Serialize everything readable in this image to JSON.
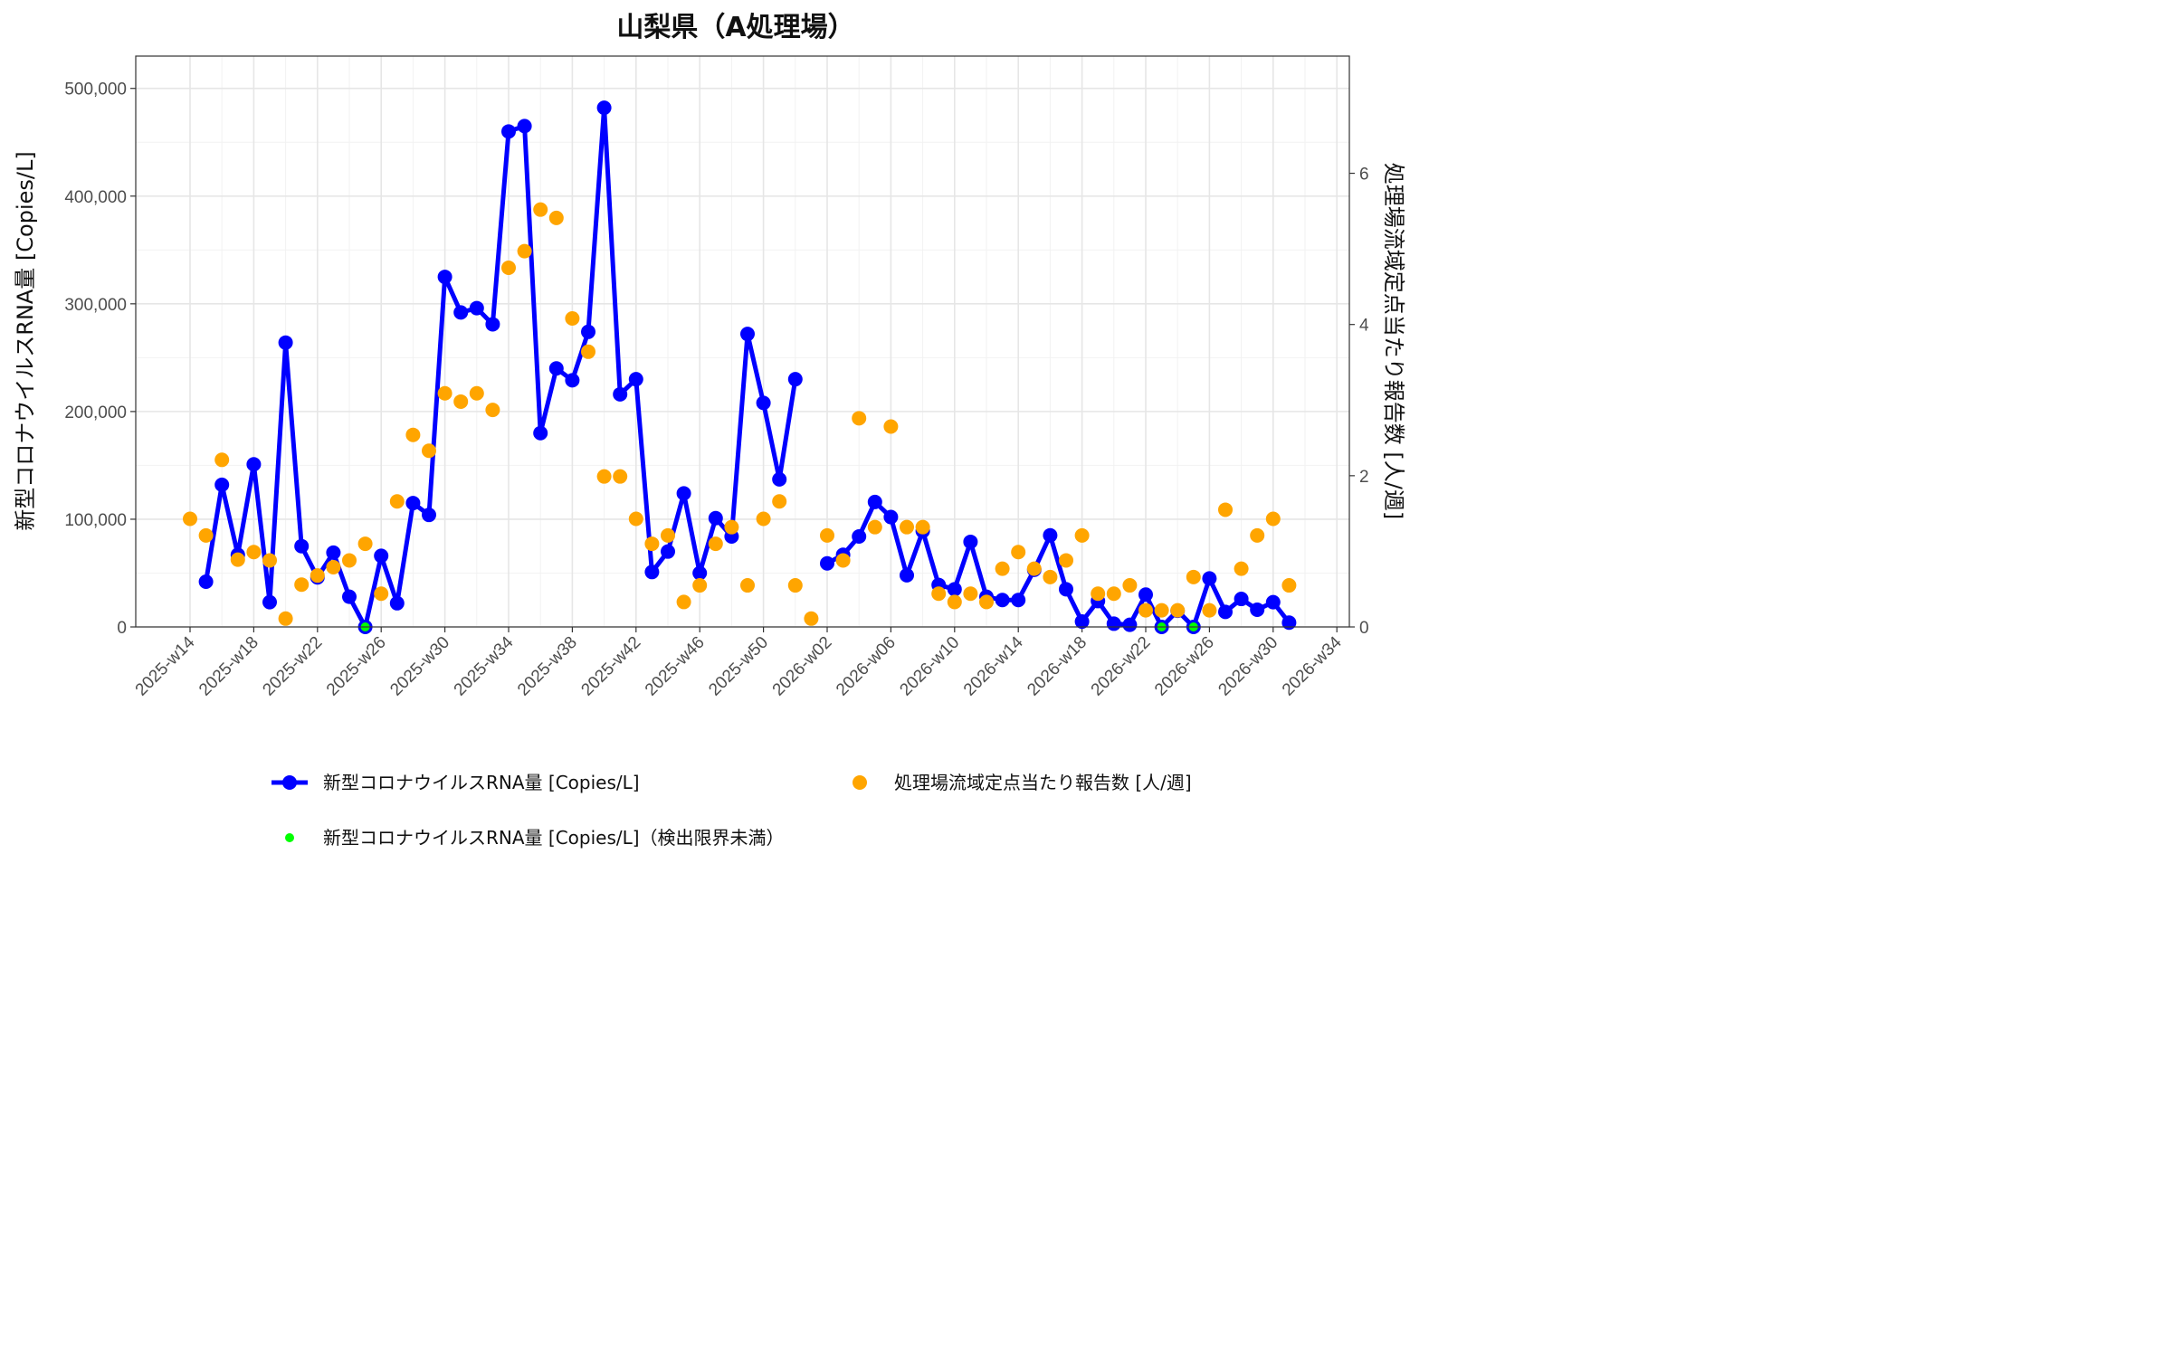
{
  "chart_data": {
    "type": "line",
    "title": "山梨県（A処理場）",
    "ylabel": "新型コロナウイルスRNA量 [Copies/L]",
    "y2label": "処理場流域定点当たり報告数 [人/週]",
    "ylim": [
      0,
      530000
    ],
    "y2lim": [
      0,
      7.55
    ],
    "yticks": [
      0,
      100000,
      200000,
      300000,
      400000,
      500000
    ],
    "ytick_labels": [
      "0",
      "100,000",
      "200,000",
      "300,000",
      "400,000",
      "500,000"
    ],
    "y2ticks": [
      0,
      2,
      4,
      6
    ],
    "y2tick_labels": [
      "0",
      "2",
      "4",
      "6"
    ],
    "xticks": [
      "2025-w14",
      "2025-w18",
      "2025-w22",
      "2025-w26",
      "2025-w30",
      "2025-w34",
      "2025-w38",
      "2025-w42",
      "2025-w46",
      "2025-w50",
      "2026-w02",
      "2026-w06",
      "2026-w10",
      "2026-w14",
      "2026-w18",
      "2026-w22",
      "2026-w26",
      "2026-w30",
      "2026-w34"
    ],
    "grid": true,
    "legend_position": "bottom",
    "series": [
      {
        "name": "新型コロナウイルスRNA量 [Copies/L]",
        "kind": "line",
        "axis": "left",
        "color": "#0000ff",
        "x": [
          "2025-w15",
          "2025-w16",
          "2025-w17",
          "2025-w18",
          "2025-w19",
          "2025-w20",
          "2025-w21",
          "2025-w22",
          "2025-w23",
          "2025-w24",
          "2025-w25",
          "2025-w26",
          "2025-w27",
          "2025-w28",
          "2025-w29",
          "2025-w30",
          "2025-w31",
          "2025-w32",
          "2025-w33",
          "2025-w34",
          "2025-w35",
          "2025-w36",
          "2025-w37",
          "2025-w38",
          "2025-w39",
          "2025-w40",
          "2025-w41",
          "2025-w42",
          "2025-w43",
          "2025-w44",
          "2025-w45",
          "2025-w46",
          "2025-w47",
          "2025-w48",
          "2025-w49",
          "2025-w50",
          "2025-w51",
          "2025-w52",
          "2026-w01",
          "2026-w02",
          "2026-w03",
          "2026-w04",
          "2026-w05",
          "2026-w06",
          "2026-w07",
          "2026-w08",
          "2026-w09",
          "2026-w10",
          "2026-w11",
          "2026-w12",
          "2026-w13",
          "2026-w14",
          "2026-w15",
          "2026-w16",
          "2026-w17",
          "2026-w18",
          "2026-w19",
          "2026-w20",
          "2026-w21",
          "2026-w22",
          "2026-w23",
          "2026-w24",
          "2026-w25",
          "2026-w26",
          "2026-w27",
          "2026-w28",
          "2026-w29",
          "2026-w30",
          "2026-w31"
        ],
        "values": [
          42000,
          132000,
          67000,
          151000,
          23000,
          264000,
          75000,
          46000,
          69000,
          28000,
          0,
          66000,
          22000,
          115000,
          104000,
          325000,
          292000,
          296000,
          281000,
          460000,
          465000,
          180000,
          240000,
          229000,
          274000,
          482000,
          216000,
          230000,
          51000,
          70000,
          124000,
          50000,
          101000,
          84000,
          272000,
          208000,
          137000,
          230000,
          null,
          59000,
          67000,
          84000,
          116000,
          102000,
          48000,
          89000,
          39000,
          35000,
          79000,
          28000,
          25000,
          25000,
          53000,
          85000,
          35000,
          5000,
          24000,
          3000,
          2000,
          30000,
          0,
          15000,
          0,
          45000,
          14000,
          26000,
          16000,
          23000,
          4000
        ]
      },
      {
        "name": "処理場流域定点当たり報告数 [人/週]",
        "kind": "points",
        "axis": "right",
        "color": "#ffa500",
        "x": [
          "2025-w14",
          "2025-w15",
          "2025-w16",
          "2025-w17",
          "2025-w18",
          "2025-w19",
          "2025-w20",
          "2025-w21",
          "2025-w22",
          "2025-w23",
          "2025-w24",
          "2025-w25",
          "2025-w26",
          "2025-w27",
          "2025-w28",
          "2025-w29",
          "2025-w30",
          "2025-w31",
          "2025-w32",
          "2025-w33",
          "2025-w34",
          "2025-w35",
          "2025-w36",
          "2025-w37",
          "2025-w38",
          "2025-w39",
          "2025-w40",
          "2025-w41",
          "2025-w42",
          "2025-w43",
          "2025-w44",
          "2025-w45",
          "2025-w46",
          "2025-w47",
          "2025-w48",
          "2025-w49",
          "2025-w50",
          "2025-w51",
          "2025-w52",
          "2026-w01",
          "2026-w02",
          "2026-w03",
          "2026-w04",
          "2026-w05",
          "2026-w06",
          "2026-w07",
          "2026-w08",
          "2026-w09",
          "2026-w10",
          "2026-w11",
          "2026-w12",
          "2026-w13",
          "2026-w14",
          "2026-w15",
          "2026-w16",
          "2026-w17",
          "2026-w18",
          "2026-w19",
          "2026-w20",
          "2026-w21",
          "2026-w22",
          "2026-w23",
          "2026-w24",
          "2026-w25",
          "2026-w26",
          "2026-w27",
          "2026-w28",
          "2026-w29",
          "2026-w30",
          "2026-w31"
        ],
        "values": [
          1.43,
          1.21,
          2.21,
          0.89,
          0.99,
          0.88,
          0.11,
          0.56,
          0.68,
          0.79,
          0.88,
          1.1,
          0.44,
          1.66,
          2.54,
          2.33,
          3.09,
          2.98,
          3.09,
          2.87,
          4.75,
          4.97,
          5.52,
          5.41,
          4.08,
          3.64,
          1.99,
          1.99,
          1.43,
          1.1,
          1.21,
          0.33,
          0.55,
          1.1,
          1.32,
          0.55,
          1.43,
          1.66,
          0.55,
          0.11,
          1.21,
          0.88,
          2.76,
          1.32,
          2.65,
          1.32,
          1.32,
          0.44,
          0.33,
          0.44,
          0.33,
          0.77,
          0.99,
          0.77,
          0.66,
          0.88,
          1.21,
          0.44,
          0.44,
          0.55,
          0.22,
          0.22,
          0.22,
          0.66,
          0.22,
          1.55,
          0.77,
          1.21,
          1.43,
          0.55
        ]
      },
      {
        "name": "新型コロナウイルスRNA量 [Copies/L]（検出限界未満）",
        "kind": "points",
        "axis": "left",
        "color": "#00ff00",
        "x": [
          "2025-w25",
          "2026-w23",
          "2026-w25"
        ],
        "values": [
          0,
          0,
          0
        ]
      }
    ]
  }
}
